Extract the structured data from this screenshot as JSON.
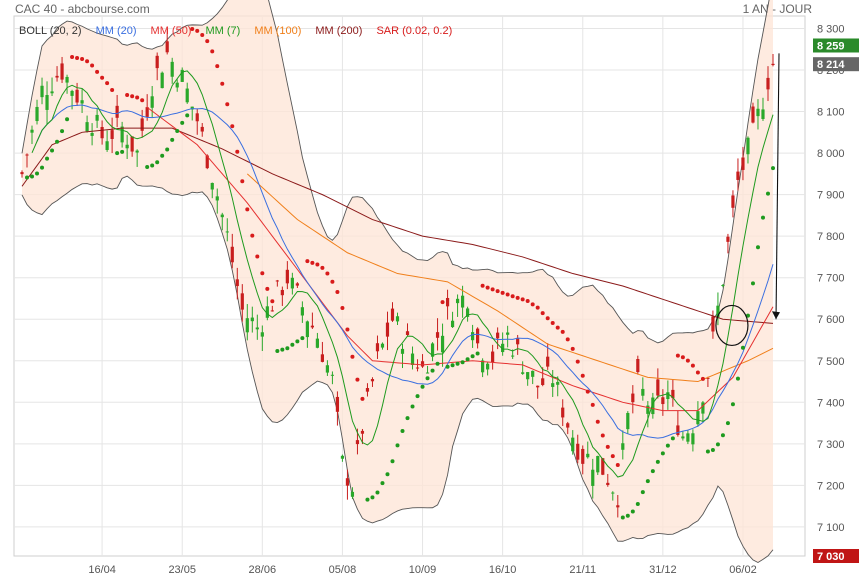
{
  "header": {
    "title": "CAC 40 - abcbourse.com",
    "period": "1 AN - JOUR"
  },
  "legend": [
    {
      "label": "BOLL (20, 2)",
      "color": "#333333"
    },
    {
      "label": "MM (20)",
      "color": "#3a6fe0"
    },
    {
      "label": "MM (50)",
      "color": "#e53030"
    },
    {
      "label": "MM (7)",
      "color": "#1e9a1e"
    },
    {
      "label": "MM (100)",
      "color": "#f07f1a"
    },
    {
      "label": "MM (200)",
      "color": "#8b1a1a"
    },
    {
      "label": "SAR (0.02, 0.2)",
      "color": "#d81b1b"
    }
  ],
  "badges": [
    {
      "value": 8259,
      "text": "8 259",
      "color": "#2a8a2a"
    },
    {
      "value": 8214,
      "text": "8 214",
      "color": "#666666"
    },
    {
      "value": 7030,
      "text": "7 030",
      "color": "#c01515"
    }
  ],
  "chart_data": {
    "type": "line",
    "ylim": [
      7030,
      8330
    ],
    "yticks": [
      {
        "v": 7100,
        "label": "7 100"
      },
      {
        "v": 7200,
        "label": "7 200"
      },
      {
        "v": 7300,
        "label": "7 300"
      },
      {
        "v": 7400,
        "label": "7 400"
      },
      {
        "v": 7500,
        "label": "7 500"
      },
      {
        "v": 7600,
        "label": "7 600"
      },
      {
        "v": 7700,
        "label": "7 700"
      },
      {
        "v": 7800,
        "label": "7 800"
      },
      {
        "v": 7900,
        "label": "7 900"
      },
      {
        "v": 8000,
        "label": "8 000"
      },
      {
        "v": 8100,
        "label": "8 100"
      },
      {
        "v": 8200,
        "label": "8 200"
      },
      {
        "v": 8300,
        "label": "8 300"
      }
    ],
    "xticks": [
      {
        "i": 16,
        "label": "16/04"
      },
      {
        "i": 32,
        "label": "23/05"
      },
      {
        "i": 48,
        "label": "28/06"
      },
      {
        "i": 64,
        "label": "05/08"
      },
      {
        "i": 80,
        "label": "10/09"
      },
      {
        "i": 96,
        "label": "16/10"
      },
      {
        "i": 112,
        "label": "21/11"
      },
      {
        "i": 128,
        "label": "31/12"
      },
      {
        "i": 144,
        "label": "06/02"
      }
    ],
    "n_days": 151,
    "price_keypoints": [
      [
        0,
        7950
      ],
      [
        4,
        8150
      ],
      [
        8,
        8200
      ],
      [
        12,
        8120
      ],
      [
        16,
        8040
      ],
      [
        20,
        8060
      ],
      [
        23,
        8000
      ],
      [
        26,
        8170
      ],
      [
        29,
        8240
      ],
      [
        32,
        8180
      ],
      [
        35,
        8080
      ],
      [
        38,
        7950
      ],
      [
        41,
        7800
      ],
      [
        44,
        7620
      ],
      [
        47,
        7580
      ],
      [
        50,
        7640
      ],
      [
        53,
        7700
      ],
      [
        56,
        7630
      ],
      [
        59,
        7560
      ],
      [
        62,
        7450
      ],
      [
        64,
        7250
      ],
      [
        66,
        7200
      ],
      [
        68,
        7340
      ],
      [
        71,
        7500
      ],
      [
        74,
        7600
      ],
      [
        77,
        7540
      ],
      [
        80,
        7480
      ],
      [
        83,
        7560
      ],
      [
        86,
        7630
      ],
      [
        89,
        7660
      ],
      [
        91,
        7540
      ],
      [
        94,
        7510
      ],
      [
        97,
        7560
      ],
      [
        100,
        7500
      ],
      [
        103,
        7440
      ],
      [
        106,
        7460
      ],
      [
        109,
        7350
      ],
      [
        112,
        7270
      ],
      [
        115,
        7260
      ],
      [
        117,
        7220
      ],
      [
        119,
        7180
      ],
      [
        121,
        7360
      ],
      [
        123,
        7440
      ],
      [
        126,
        7380
      ],
      [
        129,
        7420
      ],
      [
        132,
        7320
      ],
      [
        134,
        7350
      ],
      [
        137,
        7470
      ],
      [
        140,
        7700
      ],
      [
        143,
        7930
      ],
      [
        146,
        8040
      ],
      [
        149,
        8180
      ],
      [
        150,
        8214
      ]
    ],
    "ma200_keypoints": [
      [
        0,
        7920
      ],
      [
        6,
        8020
      ],
      [
        12,
        8050
      ],
      [
        20,
        8060
      ],
      [
        30,
        8060
      ],
      [
        40,
        8010
      ],
      [
        50,
        7950
      ],
      [
        60,
        7900
      ],
      [
        70,
        7840
      ],
      [
        80,
        7800
      ],
      [
        90,
        7780
      ],
      [
        100,
        7750
      ],
      [
        110,
        7710
      ],
      [
        120,
        7680
      ],
      [
        130,
        7640
      ],
      [
        140,
        7600
      ],
      [
        150,
        7590
      ]
    ],
    "ma100_keypoints": [
      [
        45,
        7950
      ],
      [
        55,
        7840
      ],
      [
        65,
        7760
      ],
      [
        75,
        7710
      ],
      [
        85,
        7690
      ],
      [
        95,
        7620
      ],
      [
        105,
        7540
      ],
      [
        115,
        7500
      ],
      [
        125,
        7460
      ],
      [
        135,
        7450
      ],
      [
        145,
        7500
      ],
      [
        150,
        7530
      ]
    ],
    "ma50_keypoints": [
      [
        25,
        8110
      ],
      [
        35,
        8020
      ],
      [
        45,
        7880
      ],
      [
        55,
        7720
      ],
      [
        65,
        7560
      ],
      [
        70,
        7500
      ],
      [
        80,
        7490
      ],
      [
        90,
        7500
      ],
      [
        100,
        7490
      ],
      [
        110,
        7440
      ],
      [
        120,
        7400
      ],
      [
        128,
        7380
      ],
      [
        135,
        7380
      ],
      [
        142,
        7460
      ],
      [
        150,
        7630
      ]
    ],
    "annotation": {
      "circle_index": 141,
      "circle_value": 7585,
      "arrow_from": [
        150,
        8240
      ],
      "arrow_to": [
        151,
        7600
      ]
    },
    "series": [
      {
        "name": "MM (20)",
        "color": "#3a6fe0"
      },
      {
        "name": "MM (50)",
        "color": "#e53030"
      },
      {
        "name": "MM (7)",
        "color": "#1e9a1e"
      },
      {
        "name": "MM (100)",
        "color": "#f07f1a"
      },
      {
        "name": "MM (200)",
        "color": "#8b1a1a"
      },
      {
        "name": "BOLL (20, 2)",
        "color": "#333333"
      },
      {
        "name": "SAR (0.02, 0.2)",
        "color": "#d81b1b"
      }
    ]
  }
}
